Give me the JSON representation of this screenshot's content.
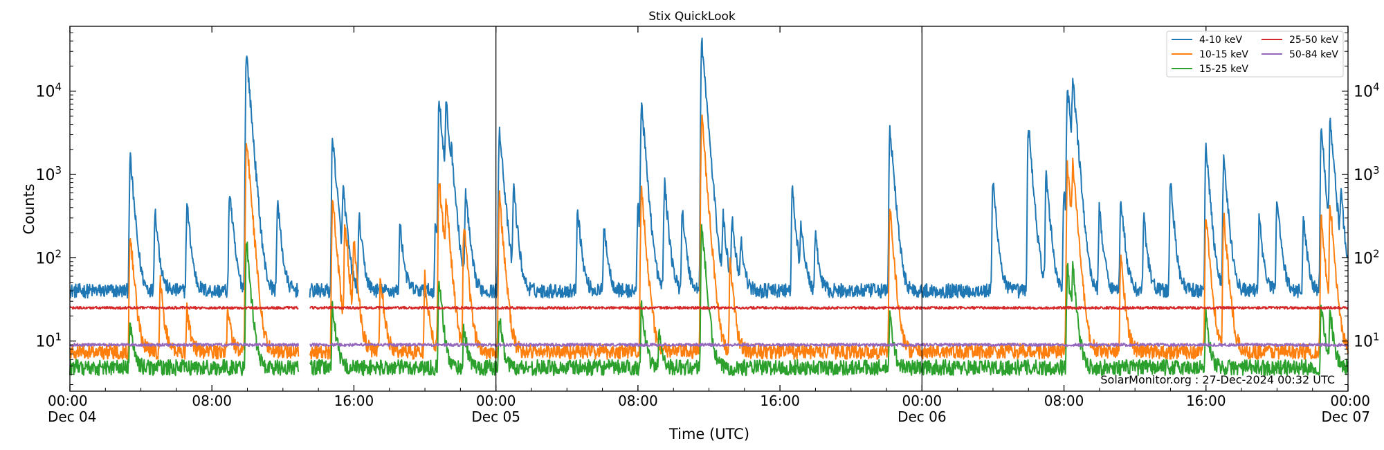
{
  "chart_data": {
    "type": "line",
    "title": "Stix QuickLook",
    "xlabel": "Time (UTC)",
    "ylabel": "Counts",
    "yscale": "log",
    "ylim": [
      2.5,
      60000
    ],
    "xlim_hours": [
      0,
      72
    ],
    "x_ticks": [
      {
        "hour": 0,
        "label": "00:00",
        "date": "Dec 04"
      },
      {
        "hour": 8,
        "label": "08:00",
        "date": ""
      },
      {
        "hour": 16,
        "label": "16:00",
        "date": ""
      },
      {
        "hour": 24,
        "label": "00:00",
        "date": "Dec 05"
      },
      {
        "hour": 32,
        "label": "08:00",
        "date": ""
      },
      {
        "hour": 40,
        "label": "16:00",
        "date": ""
      },
      {
        "hour": 48,
        "label": "00:00",
        "date": "Dec 06"
      },
      {
        "hour": 56,
        "label": "08:00",
        "date": ""
      },
      {
        "hour": 64,
        "label": "16:00",
        "date": ""
      },
      {
        "hour": 72,
        "label": "00:00",
        "date": "Dec 07"
      }
    ],
    "y_ticks": [
      {
        "value": 10,
        "exp": "1"
      },
      {
        "value": 100,
        "exp": "2"
      },
      {
        "value": 1000,
        "exp": "3"
      },
      {
        "value": 10000,
        "exp": "4"
      }
    ],
    "day_boundaries_hours": [
      24,
      48
    ],
    "data_gap_hours": [
      12.9,
      13.5
    ],
    "legend_position": "top-right",
    "footer": "SolarMonitor.org : 27-Dec-2024 00:32 UTC",
    "series": [
      {
        "name": "4-10 keV",
        "color": "#1f77b4",
        "baseline": 40,
        "peaks": [
          [
            3.4,
            1600
          ],
          [
            4.8,
            380
          ],
          [
            6.6,
            450
          ],
          [
            9.0,
            650
          ],
          [
            9.95,
            29000
          ],
          [
            11.7,
            480
          ],
          [
            14.8,
            2900
          ],
          [
            15.4,
            650
          ],
          [
            16.3,
            300
          ],
          [
            18.6,
            250
          ],
          [
            20.6,
            260
          ],
          [
            20.8,
            8500
          ],
          [
            21.2,
            6500
          ],
          [
            21.5,
            950
          ],
          [
            22.3,
            600
          ],
          [
            24.2,
            3800
          ],
          [
            25.0,
            700
          ],
          [
            28.6,
            400
          ],
          [
            30.1,
            250
          ],
          [
            32.0,
            400
          ],
          [
            32.2,
            7200
          ],
          [
            33.5,
            800
          ],
          [
            34.5,
            380
          ],
          [
            35.6,
            40000
          ],
          [
            36.8,
            300
          ],
          [
            37.3,
            300
          ],
          [
            37.8,
            160
          ],
          [
            40.7,
            650
          ],
          [
            41.2,
            230
          ],
          [
            42.0,
            180
          ],
          [
            46.2,
            3600
          ],
          [
            52.0,
            850
          ],
          [
            54.0,
            3900
          ],
          [
            55.0,
            1000
          ],
          [
            56.0,
            600
          ],
          [
            56.2,
            11000
          ],
          [
            56.5,
            13000
          ],
          [
            58.0,
            400
          ],
          [
            59.2,
            550
          ],
          [
            60.5,
            300
          ],
          [
            62.0,
            800
          ],
          [
            64.0,
            2100
          ],
          [
            65.0,
            1600
          ],
          [
            67.0,
            300
          ],
          [
            68.0,
            560
          ],
          [
            69.5,
            300
          ],
          [
            70.5,
            3600
          ],
          [
            71.0,
            4500
          ],
          [
            71.6,
            520
          ]
        ]
      },
      {
        "name": "10-15 keV",
        "color": "#ff7f0e",
        "baseline": 7.5,
        "peaks": [
          [
            3.4,
            200
          ],
          [
            5.1,
            50
          ],
          [
            6.6,
            25
          ],
          [
            8.9,
            25
          ],
          [
            9.95,
            2800
          ],
          [
            14.8,
            520
          ],
          [
            15.5,
            260
          ],
          [
            16.0,
            150
          ],
          [
            17.5,
            60
          ],
          [
            20.0,
            60
          ],
          [
            20.8,
            950
          ],
          [
            21.2,
            450
          ],
          [
            22.2,
            250
          ],
          [
            24.2,
            550
          ],
          [
            32.2,
            700
          ],
          [
            35.6,
            5000
          ],
          [
            37.2,
            85
          ],
          [
            46.2,
            380
          ],
          [
            56.2,
            1300
          ],
          [
            56.5,
            1200
          ],
          [
            59.2,
            110
          ],
          [
            64.0,
            350
          ],
          [
            65.0,
            320
          ],
          [
            70.5,
            300
          ],
          [
            71.0,
            420
          ]
        ]
      },
      {
        "name": "15-25 keV",
        "color": "#2ca02c",
        "baseline": 4.8,
        "peaks": [
          [
            3.4,
            17
          ],
          [
            9.95,
            170
          ],
          [
            14.8,
            28
          ],
          [
            20.8,
            55
          ],
          [
            22.2,
            15
          ],
          [
            24.2,
            20
          ],
          [
            32.2,
            28
          ],
          [
            33.2,
            13
          ],
          [
            35.6,
            250
          ],
          [
            46.2,
            20
          ],
          [
            56.2,
            80
          ],
          [
            56.5,
            70
          ],
          [
            64.0,
            20
          ],
          [
            70.5,
            28
          ],
          [
            71.0,
            22
          ]
        ]
      },
      {
        "name": "25-50 keV",
        "color": "#d62728",
        "baseline": 25,
        "peaks": []
      },
      {
        "name": "50-84 keV",
        "color": "#9467bd",
        "baseline": 9.0,
        "peaks": []
      }
    ]
  }
}
